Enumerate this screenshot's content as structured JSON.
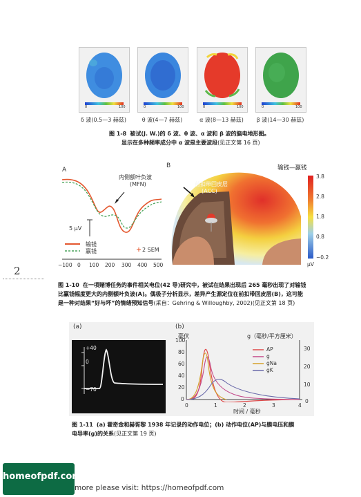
{
  "fig8": {
    "captions": [
      "δ 波(0.5—3 赫兹)",
      "θ 波(4—7 赫兹)",
      "α 波(8—13 赫兹)",
      "β 波(14—30 赫兹)"
    ],
    "scale_labels": [
      "0",
      "100"
    ],
    "caption_num": "图 1-8",
    "caption_line1": "被试(J. W.)的 δ 波、θ 波、α 波和 β 波的脑电地形图。",
    "caption_line2": "显示在多种频率成分中 α 波是主要波段",
    "caption_ref": "(见正文第 16 页)",
    "colors": {
      "delta": "#3f8de0",
      "theta": "#3a86de",
      "alpha": "#e53a2a",
      "beta": "#3fa44b"
    }
  },
  "fig10": {
    "label_a": "A",
    "label_b": "B",
    "mfn_label": "内侧额叶负波",
    "mfn_abbr": "(MFN)",
    "scale_uv": "5 μV",
    "legend_lose": "输钱",
    "legend_win": "赢钱",
    "sem": "2 SEM",
    "x_ticks": [
      "−100",
      "0",
      "100",
      "200",
      "300",
      "400",
      "500"
    ],
    "b_title": "输钱—赢钱",
    "acc_label": "前扣带回皮层",
    "acc_abbr": "(ACC)",
    "colorbar_ticks": [
      "3.8",
      "2.8",
      "1.8",
      "0.8",
      "−0.2"
    ],
    "colorbar_unit": "μV",
    "lose_color": "#e4572e",
    "win_color": "#4aa45b",
    "caption_num": "图 1-10",
    "caption_line1": "在一项赌博任务的事件相关电位(42 导)研究中，被试在结果出现后 265 毫秒出现了对输钱",
    "caption_line2": "比赢钱幅度更大的内侧额叶负波(A)。偶极子分析显示，差异产生源定位在前扣带回皮层(B)，这可能",
    "caption_line3": "是一种对结果“好与坏”的情绪预知信号",
    "caption_ref": "(采自：Gehring & Willoughby, 2002)(见正文第 18 页)"
  },
  "page_number": "2",
  "fig11": {
    "label_a": "(a)",
    "label_b": "(b)",
    "osc_plus": "+40",
    "osc_zero": "0",
    "osc_minus": "−70",
    "y_left_unit": "毫伏",
    "y_right_unit": "g（毫秒/平方厘米）",
    "y_left_ticks": [
      "100",
      "80",
      "60",
      "40",
      "20",
      "0"
    ],
    "y_right_ticks": [
      "30",
      "20",
      "10",
      "0"
    ],
    "x_ticks": [
      "0",
      "1",
      "2",
      "3",
      "4"
    ],
    "x_label": "时间 / 毫秒",
    "legend": [
      {
        "name": "AP",
        "color": "#e04a4a"
      },
      {
        "name": "g",
        "color": "#c44a8a"
      },
      {
        "name": "gNa",
        "color": "#d4a12a"
      },
      {
        "name": "gK",
        "color": "#6a6aaa"
      }
    ],
    "caption_num": "图 1-11",
    "caption_line1": "(a) 霍奇金和赫胥黎 1938 年记录的动作电位；(b) 动作电位(AP)与膜电压和膜",
    "caption_line2": "电导率(g)的关系",
    "caption_ref": "(见正文第 19 页)"
  },
  "footer": {
    "logo": "homeofpdf.com",
    "text": "more please visit: https://homeofpdf.com"
  }
}
